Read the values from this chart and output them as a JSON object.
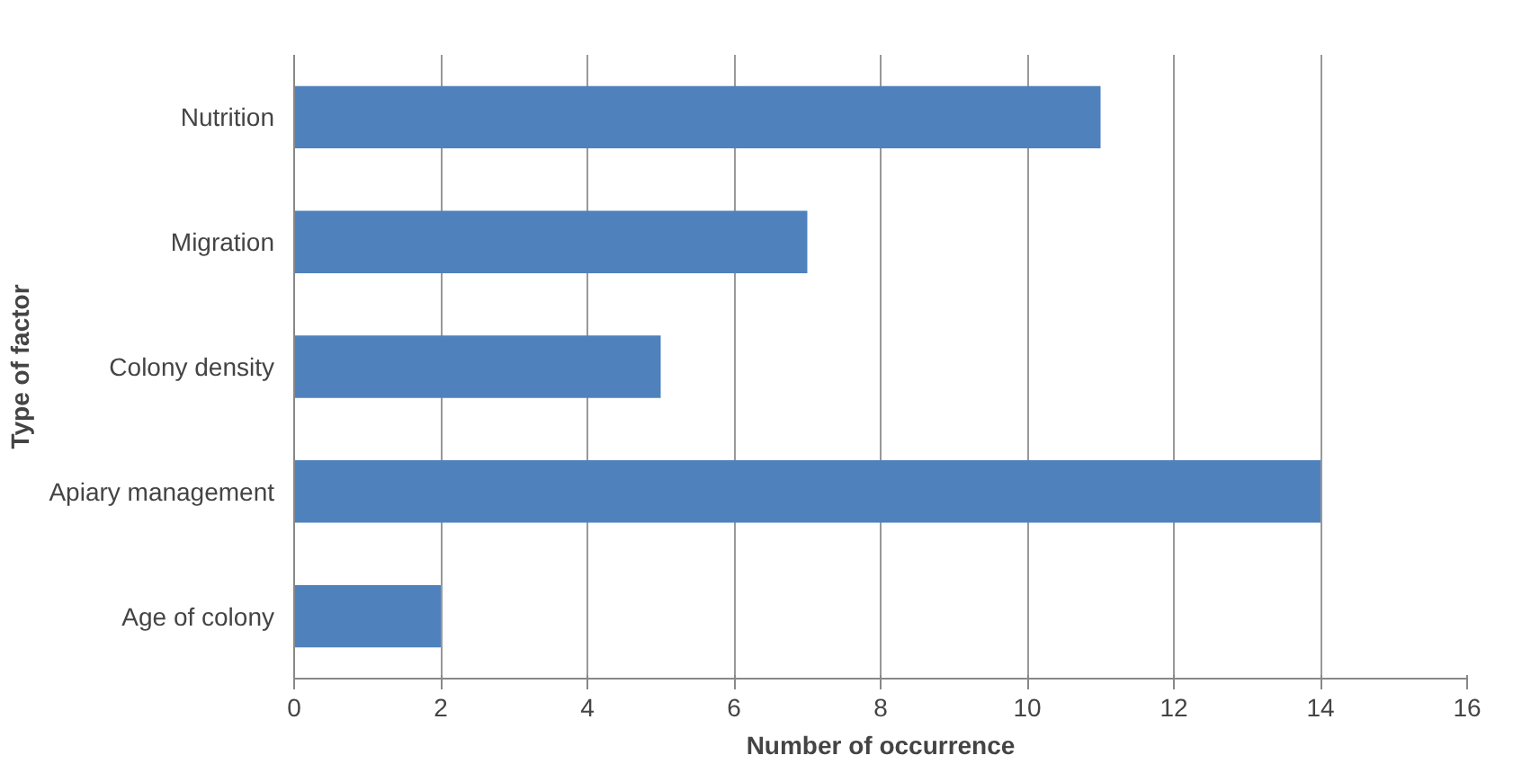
{
  "chart_data": {
    "type": "bar",
    "orientation": "horizontal",
    "categories": [
      "Nutrition",
      "Migration",
      "Colony density",
      "Apiary management",
      "Age of colony"
    ],
    "values": [
      11,
      7,
      5,
      14,
      2
    ],
    "color": "#4f81bd",
    "xlim": [
      0,
      16
    ],
    "xticks": [
      0,
      2,
      4,
      6,
      8,
      10,
      12,
      14,
      16
    ],
    "xlabel": "Number of occurrence",
    "ylabel": "Type of factor",
    "grid": "x"
  }
}
